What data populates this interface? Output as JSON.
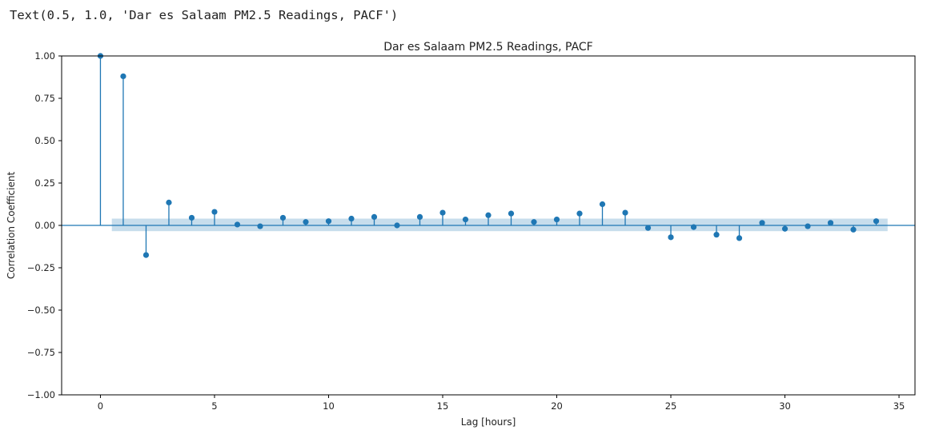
{
  "output_text": "Text(0.5, 1.0, 'Dar es Salaam PM2.5 Readings, PACF')",
  "colors": {
    "stem": "#1f77b4",
    "confidence_band": "#1f77b4",
    "axis": "#000000",
    "text": "#222222"
  },
  "chart_data": {
    "type": "stem",
    "title": "Dar es Salaam PM2.5 Readings, PACF",
    "xlabel": "Lag [hours]",
    "ylabel": "Correlation Coefficient",
    "xlim": [
      -1.7,
      35.7
    ],
    "ylim": [
      -1.0,
      1.0
    ],
    "xticks": [
      0,
      5,
      10,
      15,
      20,
      25,
      30,
      35
    ],
    "xtick_labels": [
      "0",
      "5",
      "10",
      "15",
      "20",
      "25",
      "30",
      "35"
    ],
    "yticks": [
      -1.0,
      -0.75,
      -0.5,
      -0.25,
      0.0,
      0.25,
      0.5,
      0.75,
      1.0
    ],
    "ytick_labels": [
      "−1.00",
      "−0.75",
      "−0.50",
      "−0.25",
      "0.00",
      "0.25",
      "0.50",
      "0.75",
      "1.00"
    ],
    "grid": false,
    "confidence_interval": {
      "lag_start": 0.5,
      "lag_end": 34.5,
      "lower": -0.034,
      "upper": 0.04
    },
    "lags": [
      0,
      1,
      2,
      3,
      4,
      5,
      6,
      7,
      8,
      9,
      10,
      11,
      12,
      13,
      14,
      15,
      16,
      17,
      18,
      19,
      20,
      21,
      22,
      23,
      24,
      25,
      26,
      27,
      28,
      29,
      30,
      31,
      32,
      33,
      34
    ],
    "values": [
      1.0,
      0.88,
      -0.175,
      0.135,
      0.045,
      0.08,
      0.005,
      -0.005,
      0.045,
      0.02,
      0.025,
      0.04,
      0.05,
      0.0,
      0.05,
      0.075,
      0.035,
      0.06,
      0.07,
      0.02,
      0.035,
      0.07,
      0.125,
      0.075,
      -0.015,
      -0.07,
      -0.01,
      -0.055,
      -0.075,
      0.015,
      -0.02,
      -0.005,
      0.015,
      -0.025,
      0.025
    ]
  }
}
